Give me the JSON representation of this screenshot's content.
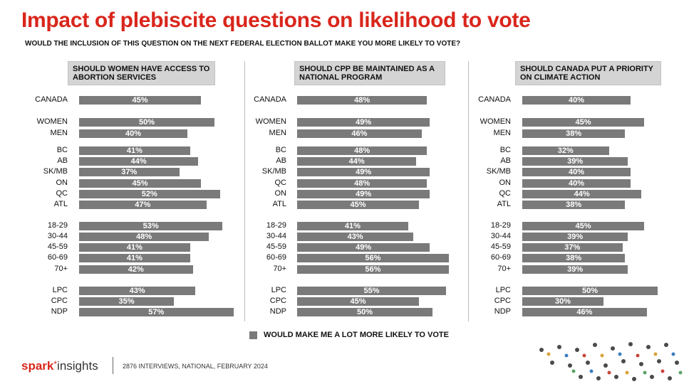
{
  "title": "Impact of plebiscite questions on likelihood to vote",
  "subtitle": "WOULD THE INCLUSION OF THIS QUESTION ON THE NEXT FEDERAL ELECTION BALLOT MAKE YOU MORE LIKELY TO VOTE?",
  "legend": "WOULD MAKE ME A LOT MORE LIKELY TO VOTE",
  "footnote": "2876 INTERVIEWS, NATIONAL, FEBRUARY 2024",
  "logo": {
    "part1": "spark",
    "star": "*",
    "part2": "insights"
  },
  "colors": {
    "title": "#d9261c",
    "bar": "#7a7a7a",
    "question_box": "#d4d4d4"
  },
  "chart_data": [
    {
      "type": "bar",
      "orientation": "horizontal",
      "question": "SHOULD WOMEN HAVE ACCESS TO ABORTION SERVICES",
      "series_name": "WOULD MAKE ME A LOT MORE LIKELY TO VOTE",
      "categories": [
        "CANADA",
        "WOMEN",
        "MEN",
        "BC",
        "AB",
        "SK/MB",
        "ON",
        "QC",
        "ATL",
        "18-29",
        "30-44",
        "45-59",
        "60-69",
        "70+",
        "LPC",
        "CPC",
        "NDP"
      ],
      "values": [
        45,
        50,
        40,
        41,
        44,
        37,
        45,
        52,
        47,
        53,
        48,
        41,
        41,
        42,
        43,
        35,
        57
      ],
      "labels": [
        "45%",
        "50%",
        "40%",
        "41%",
        "44%",
        "37%",
        "45%",
        "52%",
        "47%",
        "53%",
        "48%",
        "41%",
        "41%",
        "42%",
        "43%",
        "35%",
        "57%"
      ]
    },
    {
      "type": "bar",
      "orientation": "horizontal",
      "question": "SHOULD CPP BE MAINTAINED AS A NATIONAL PROGRAM",
      "series_name": "WOULD MAKE ME A LOT MORE LIKELY TO VOTE",
      "categories": [
        "CANADA",
        "WOMEN",
        "MEN",
        "BC",
        "AB",
        "SK/MB",
        "QC",
        "ON",
        "ATL",
        "18-29",
        "30-44",
        "45-59",
        "60-69",
        "70+",
        "LPC",
        "CPC",
        "NDP"
      ],
      "values": [
        48,
        49,
        46,
        48,
        44,
        49,
        48,
        49,
        45,
        41,
        43,
        49,
        56,
        56,
        55,
        45,
        50
      ],
      "labels": [
        "48%",
        "49%",
        "46%",
        "48%",
        "44%",
        "49%",
        "48%",
        "49%",
        "45%",
        "41%",
        "43%",
        "49%",
        "56%",
        "56%",
        "55%",
        "45%",
        "50%"
      ]
    },
    {
      "type": "bar",
      "orientation": "horizontal",
      "question": "SHOULD CANADA PUT A PRIORITY ON CLIMATE ACTION",
      "series_name": "WOULD MAKE ME A LOT MORE LIKELY TO VOTE",
      "categories": [
        "CANADA",
        "WOMEN",
        "MEN",
        "BC",
        "AB",
        "SK/MB",
        "ON",
        "QC",
        "ATL",
        "18-29",
        "30-44",
        "45-59",
        "60-69",
        "70+",
        "LPC",
        "CPC",
        "NDP"
      ],
      "values": [
        40,
        45,
        38,
        32,
        39,
        40,
        40,
        44,
        38,
        45,
        39,
        37,
        38,
        39,
        50,
        30,
        46
      ],
      "labels": [
        "40%",
        "45%",
        "38%",
        "32%",
        "39%",
        "40%",
        "40%",
        "44%",
        "38%",
        "45%",
        "39%",
        "37%",
        "38%",
        "39%",
        "50%",
        "30%",
        "46%"
      ]
    }
  ]
}
